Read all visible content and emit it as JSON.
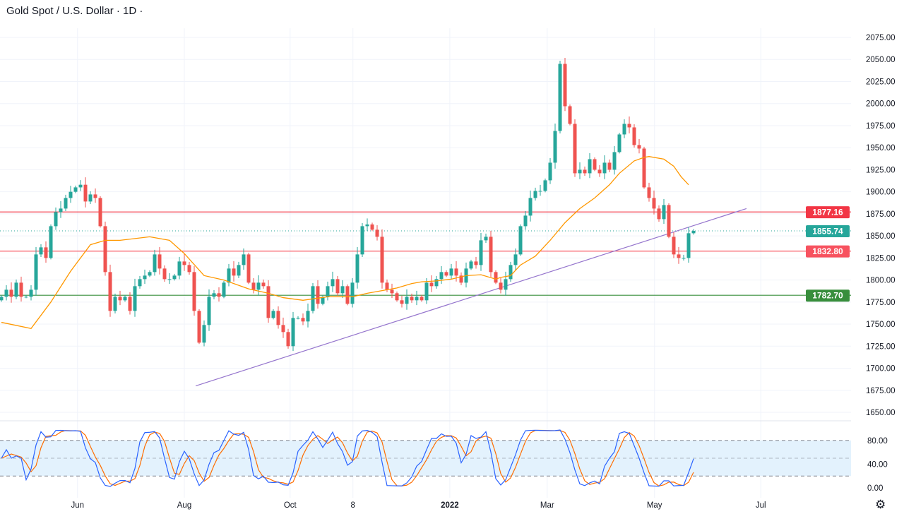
{
  "header": {
    "title": "Gold Spot / U.S. Dollar · 1D ·"
  },
  "chart_data": {
    "type": "candlestick",
    "title": "Gold Spot / U.S. Dollar · 1D",
    "colors": {
      "up": "#26a69a",
      "down": "#ef5350",
      "ma": "#ff9800",
      "trendline": "#9575cd",
      "stoch_k": "#2962ff",
      "stoch_d": "#ff6d00",
      "stoch_band": "#e3f2fd"
    },
    "y_ticks": [
      1650,
      1675,
      1700,
      1725,
      1750,
      1775,
      1800,
      1825,
      1850,
      1875,
      1900,
      1925,
      1950,
      1975,
      2000,
      2025,
      2050,
      2075
    ],
    "ylim": [
      1650,
      2075
    ],
    "x_ticks": [
      {
        "label": "Jun",
        "bar": 15.4,
        "bold": false
      },
      {
        "label": "Aug",
        "bar": 37,
        "bold": false
      },
      {
        "label": "Oct",
        "bar": 58.4,
        "bold": false
      },
      {
        "label": "8",
        "bar": 71.1,
        "bold": false
      },
      {
        "label": "2022",
        "bar": 90.7,
        "bold": true
      },
      {
        "label": "Mar",
        "bar": 110.4,
        "bold": false
      },
      {
        "label": "May",
        "bar": 132.1,
        "bold": false
      },
      {
        "label": "Jul",
        "bar": 153.6,
        "bold": false
      }
    ],
    "closes": [
      1781,
      1789,
      1781,
      1797,
      1781,
      1781,
      1789,
      1829,
      1837,
      1825,
      1861,
      1877,
      1881,
      1893,
      1900,
      1905,
      1908,
      1889,
      1897,
      1893,
      1861,
      1809,
      1765,
      1781,
      1777,
      1781,
      1765,
      1793,
      1801,
      1805,
      1809,
      1829,
      1813,
      1801,
      1801,
      1805,
      1821,
      1817,
      1809,
      1765,
      1729,
      1749,
      1781,
      1785,
      1781,
      1797,
      1813,
      1805,
      1817,
      1829,
      1797,
      1789,
      1797,
      1793,
      1757,
      1765,
      1749,
      1741,
      1725,
      1757,
      1757,
      1753,
      1765,
      1793,
      1773,
      1781,
      1793,
      1801,
      1785,
      1793,
      1773,
      1797,
      1829,
      1861,
      1863,
      1857,
      1849,
      1797,
      1789,
      1785,
      1777,
      1773,
      1781,
      1777,
      1781,
      1777,
      1797,
      1793,
      1801,
      1809,
      1805,
      1813,
      1805,
      1797,
      1813,
      1821,
      1817,
      1845,
      1849,
      1809,
      1797,
      1789,
      1801,
      1817,
      1829,
      1861,
      1873,
      1893,
      1901,
      1901,
      1913,
      1933,
      1969,
      2045,
      1997,
      1977,
      1921,
      1925,
      1921,
      1937,
      1925,
      1921,
      1933,
      1925,
      1945,
      1965,
      1977,
      1973,
      1953,
      1949,
      1905,
      1893,
      1881,
      1869,
      1885,
      1849,
      1829,
      1825,
      1825,
      1853,
      1855.74
    ],
    "moving_average": [
      [
        0,
        1752
      ],
      [
        6,
        1745
      ],
      [
        10,
        1775
      ],
      [
        14,
        1810
      ],
      [
        18,
        1840
      ],
      [
        21,
        1845
      ],
      [
        24,
        1845
      ],
      [
        30,
        1849
      ],
      [
        34,
        1845
      ],
      [
        37,
        1830
      ],
      [
        41,
        1805
      ],
      [
        45,
        1800
      ],
      [
        50,
        1790
      ],
      [
        54,
        1785
      ],
      [
        57,
        1780
      ],
      [
        61,
        1777
      ],
      [
        66,
        1781
      ],
      [
        71,
        1781
      ],
      [
        74,
        1785
      ],
      [
        77,
        1788
      ],
      [
        80,
        1791
      ],
      [
        83,
        1796
      ],
      [
        85,
        1798
      ],
      [
        88,
        1799
      ],
      [
        91,
        1801
      ],
      [
        94,
        1805
      ],
      [
        97,
        1806
      ],
      [
        100,
        1801
      ],
      [
        101,
        1803
      ],
      [
        103,
        1805
      ],
      [
        105,
        1817
      ],
      [
        108,
        1827
      ],
      [
        111,
        1845
      ],
      [
        114,
        1865
      ],
      [
        117,
        1881
      ],
      [
        120,
        1893
      ],
      [
        123,
        1908
      ],
      [
        125,
        1921
      ],
      [
        128,
        1935
      ],
      [
        130,
        1939
      ],
      [
        131,
        1940
      ],
      [
        134,
        1937
      ],
      [
        136,
        1929
      ],
      [
        137.5,
        1917
      ],
      [
        139,
        1908
      ]
    ],
    "trendline": [
      [
        39.3,
        1680
      ],
      [
        150.7,
        1881
      ]
    ],
    "levels": [
      {
        "value": 1877.16,
        "label": "1877.16",
        "color": "#f23645",
        "style": "solid"
      },
      {
        "value": 1855.74,
        "label": "1855.74",
        "color": "#26a69a",
        "style": "dotted"
      },
      {
        "value": 1832.8,
        "label": "1832.80",
        "color": "#f7525f",
        "style": "solid"
      },
      {
        "value": 1782.7,
        "label": "1782.70",
        "color": "#388e3c",
        "style": "solid"
      }
    ],
    "stochastic": {
      "upper": 80,
      "middle": 50,
      "lower": 20,
      "ticks": [
        "80.00",
        "40.00",
        "0.00"
      ],
      "tick_values": [
        80,
        40,
        0
      ]
    }
  }
}
